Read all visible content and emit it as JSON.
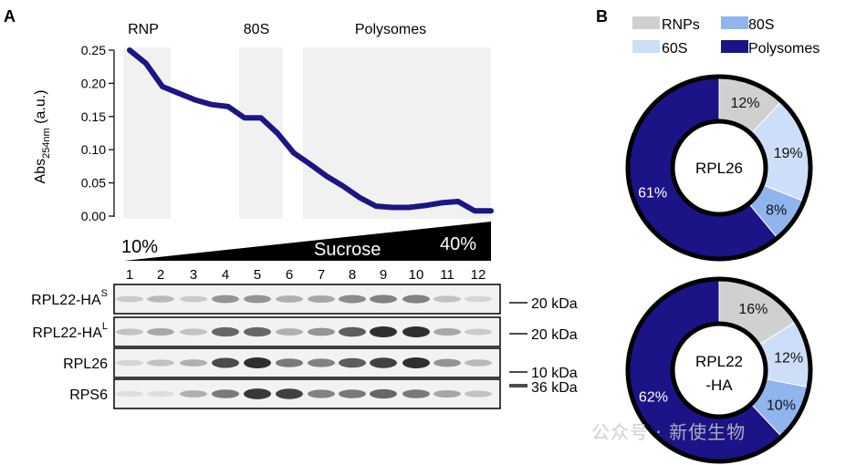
{
  "panel_a": {
    "letter": "A",
    "region_labels": [
      "RNP",
      "80S",
      "Polysomes"
    ],
    "y_axis_label": "Abs",
    "y_axis_subscript": "254nm",
    "y_axis_unit": " (a.u.)",
    "y_ticks": [
      "0.25",
      "0.20",
      "0.15",
      "0.10",
      "0.05",
      "0.00"
    ],
    "gradient_low": "10%",
    "gradient_high": "40%",
    "gradient_label": "Sucrose",
    "fractions": [
      "1",
      "2",
      "3",
      "4",
      "5",
      "6",
      "7",
      "8",
      "9",
      "10",
      "11",
      "12"
    ],
    "blots": [
      {
        "name": "RPL22-HA",
        "superscript": "S",
        "marker": "20 kDa"
      },
      {
        "name": "RPL22-HA",
        "superscript": "L",
        "marker": "20 kDa"
      },
      {
        "name": "RPL26",
        "superscript": "",
        "marker": "10 kDa"
      },
      {
        "name": "RPS6",
        "superscript": "",
        "marker": "36 kDa"
      }
    ]
  },
  "panel_b": {
    "letter": "B",
    "legend": [
      {
        "label": "RNPs",
        "color": "#d0d0d0"
      },
      {
        "label": "80S",
        "color": "#8fb4ee"
      },
      {
        "label": "60S",
        "color": "#cddff8"
      },
      {
        "label": "Polysomes",
        "color": "#1a1487"
      }
    ],
    "donuts": [
      {
        "center_line1": "RPL26",
        "center_line2": "",
        "slices": [
          {
            "label": "RNPs",
            "value": 12,
            "text": "12%"
          },
          {
            "label": "60S",
            "value": 19,
            "text": "19%"
          },
          {
            "label": "80S",
            "value": 8,
            "text": "8%"
          },
          {
            "label": "Polysomes",
            "value": 61,
            "text": "61%"
          }
        ]
      },
      {
        "center_line1": "RPL22",
        "center_line2": "-HA",
        "slices": [
          {
            "label": "RNPs",
            "value": 16,
            "text": "16%"
          },
          {
            "label": "60S",
            "value": 12,
            "text": "12%"
          },
          {
            "label": "80S",
            "value": 10,
            "text": "10%"
          },
          {
            "label": "Polysomes",
            "value": 62,
            "text": "62%"
          }
        ]
      }
    ]
  },
  "watermark": "公众号 · 新使生物",
  "chart_data": [
    {
      "type": "line",
      "title": "",
      "xlabel": "",
      "ylabel": "Abs254nm (a.u.)",
      "ylim": [
        0,
        0.25
      ],
      "x": [
        1,
        1.5,
        2,
        2.5,
        3,
        3.5,
        4,
        4.5,
        5,
        5.5,
        6,
        6.5,
        7,
        7.5,
        8,
        8.5,
        9,
        9.5,
        10,
        10.5,
        11,
        11.5,
        12
      ],
      "series": [
        {
          "values": [
            0.25,
            0.23,
            0.195,
            0.185,
            0.175,
            0.168,
            0.165,
            0.148,
            0.148,
            0.125,
            0.095,
            0.078,
            0.06,
            0.045,
            0.028,
            0.015,
            0.013,
            0.013,
            0.016,
            0.02,
            0.022,
            0.008,
            0.008
          ]
        }
      ],
      "grid": false
    },
    {
      "type": "pie",
      "title": "RPL26",
      "categories": [
        "RNPs",
        "60S",
        "80S",
        "Polysomes"
      ],
      "values": [
        12,
        19,
        8,
        61
      ]
    },
    {
      "type": "pie",
      "title": "RPL22-HA",
      "categories": [
        "RNPs",
        "60S",
        "80S",
        "Polysomes"
      ],
      "values": [
        16,
        12,
        10,
        62
      ]
    }
  ]
}
